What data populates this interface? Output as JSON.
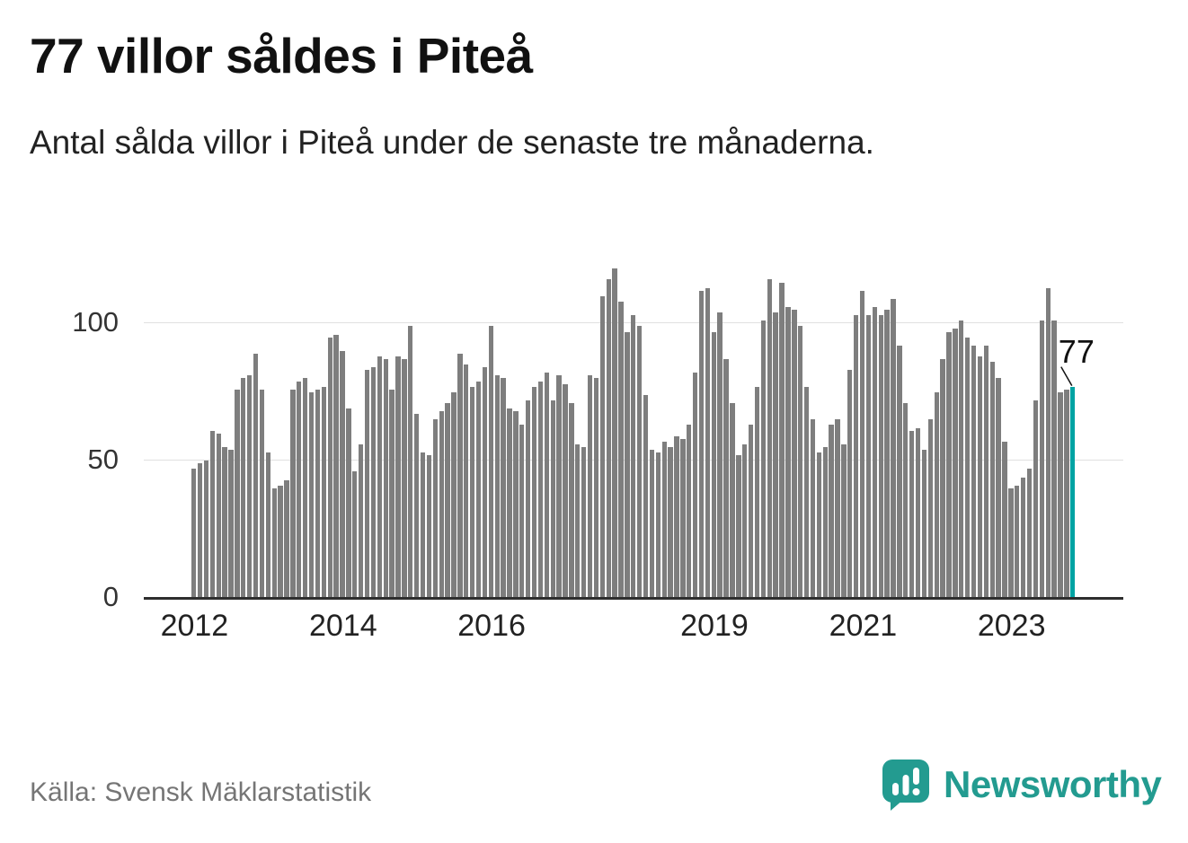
{
  "header": {
    "title": "77 villor såldes i Piteå",
    "subtitle": "Antal sålda villor i Piteå under de senaste tre månaderna."
  },
  "footer": {
    "source": "Källa: Svensk Mäklarstatistik",
    "logo_text": "Newsworthy",
    "logo_icon": "speech-bubble-bar-chart-icon"
  },
  "colors": {
    "bar": "#7e7e7e",
    "highlight": "#00a3a3",
    "gridline": "#e0e0e0",
    "axis_line": "#2e2e2e",
    "text": "#111111",
    "muted": "#757575",
    "logo": "#239b90"
  },
  "chart_data": {
    "type": "bar",
    "title": "77 villor såldes i Piteå",
    "subtitle": "Antal sålda villor i Piteå under de senaste tre månaderna.",
    "ylabel": "",
    "xlabel": "",
    "grid": "horizontal",
    "legend": null,
    "ylim": [
      0,
      123
    ],
    "y_ticks": [
      0,
      50,
      100
    ],
    "x_frequency": "monthly",
    "x_start": "2012-01",
    "x_end": "2023-11",
    "x_tick_labels": [
      "2012",
      "2014",
      "2016",
      "2019",
      "2021",
      "2023"
    ],
    "x_tick_indices": [
      0,
      24,
      48,
      84,
      108,
      132
    ],
    "highlight_index": 142,
    "highlight_label": "77",
    "highlight_value": 77,
    "values": [
      47,
      49,
      50,
      61,
      60,
      55,
      54,
      76,
      80,
      81,
      89,
      76,
      53,
      40,
      41,
      43,
      76,
      79,
      80,
      75,
      76,
      77,
      95,
      96,
      90,
      69,
      46,
      56,
      83,
      84,
      88,
      87,
      76,
      88,
      87,
      99,
      67,
      53,
      52,
      65,
      68,
      71,
      75,
      89,
      85,
      77,
      79,
      84,
      99,
      81,
      80,
      69,
      68,
      63,
      72,
      77,
      79,
      82,
      72,
      81,
      78,
      71,
      56,
      55,
      81,
      80,
      110,
      116,
      120,
      108,
      97,
      103,
      99,
      74,
      54,
      53,
      57,
      55,
      59,
      58,
      63,
      82,
      112,
      113,
      97,
      104,
      87,
      71,
      52,
      56,
      63,
      77,
      101,
      116,
      104,
      115,
      106,
      105,
      99,
      77,
      65,
      53,
      55,
      63,
      65,
      56,
      83,
      103,
      112,
      103,
      106,
      103,
      105,
      109,
      92,
      71,
      61,
      62,
      54,
      65,
      75,
      87,
      97,
      98,
      101,
      95,
      92,
      88,
      92,
      86,
      80,
      57,
      40,
      41,
      44,
      47,
      72,
      101,
      113,
      101,
      75,
      76,
      77
    ]
  }
}
